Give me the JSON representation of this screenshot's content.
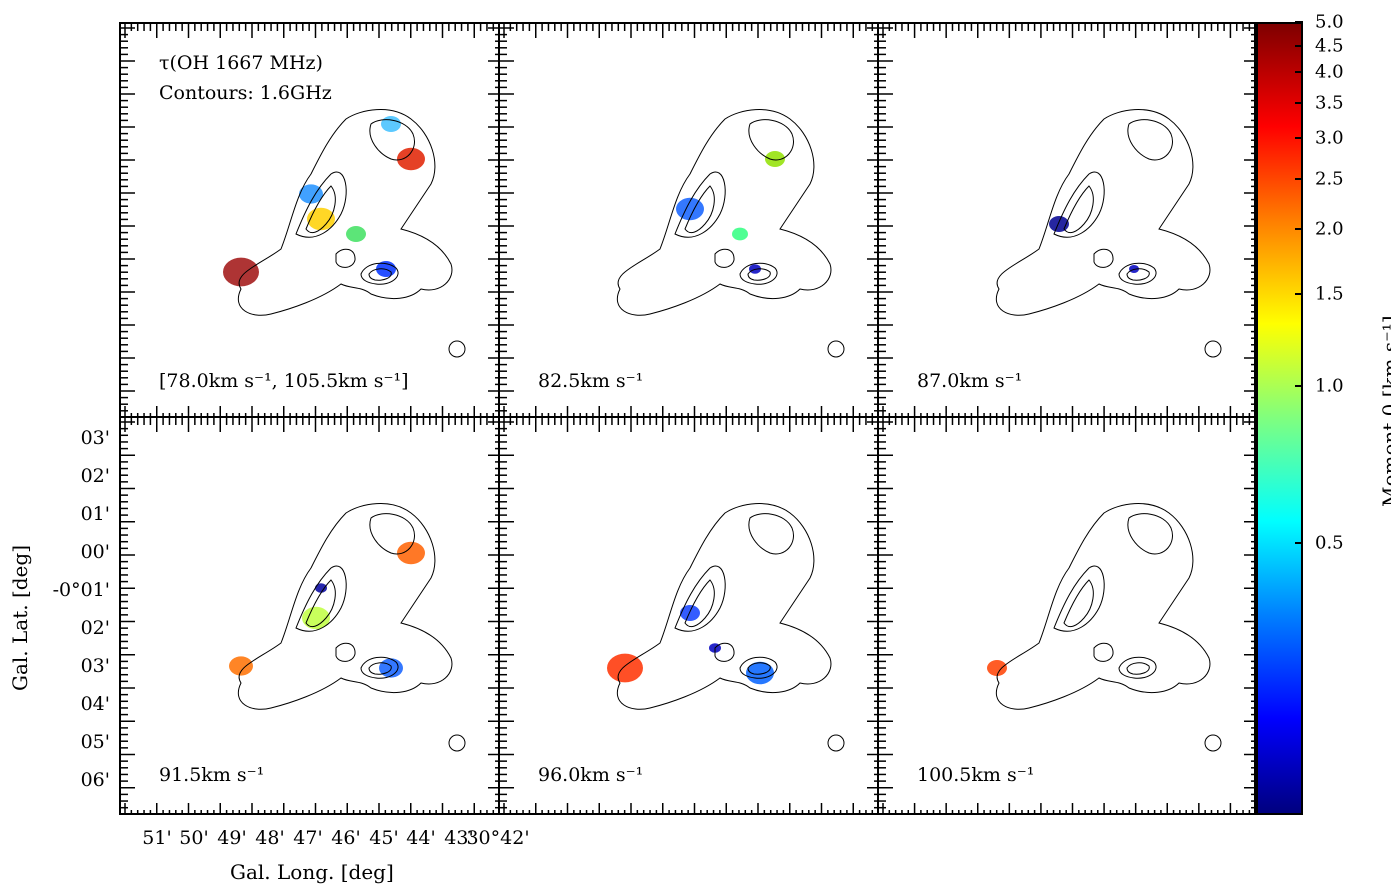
{
  "chart_data": {
    "type": "heatmap",
    "panels": [
      {
        "id": "p1",
        "labels": [
          "τ(OH 1667 MHz)",
          "Contours: 1.6GHz"
        ],
        "velocity_label": "[78.0km s⁻¹, 105.5km s⁻¹]"
      },
      {
        "id": "p2",
        "velocity_label": "82.5km s⁻¹"
      },
      {
        "id": "p3",
        "velocity_label": "87.0km s⁻¹"
      },
      {
        "id": "p4",
        "velocity_label": "91.5km s⁻¹"
      },
      {
        "id": "p5",
        "velocity_label": "96.0km s⁻¹"
      },
      {
        "id": "p6",
        "velocity_label": "100.5km s⁻¹"
      }
    ],
    "xlabel": "Gal. Long. [deg]",
    "ylabel": "Gal. Lat. [deg]",
    "x_ticks": [
      "51'",
      "50'",
      "49'",
      "48'",
      "47'",
      "46'",
      "45'",
      "44'",
      "43'",
      "30°42'"
    ],
    "y_ticks": [
      "03'",
      "02'",
      "01'",
      "00'",
      "-0°01'",
      "02'",
      "03'",
      "04'",
      "05'",
      "06'"
    ],
    "colorbar": {
      "label": "Moment 0 [km s⁻¹]",
      "scale": "log",
      "range": [
        0.15,
        5.0
      ],
      "ticks": [
        "5.0",
        "4.5",
        "4.0",
        "3.5",
        "3.0",
        "2.5",
        "2.0",
        "1.5",
        "1.0",
        "0.5"
      ],
      "tick_values": [
        5.0,
        4.5,
        4.0,
        3.5,
        3.0,
        2.5,
        2.0,
        1.5,
        1.0,
        0.5
      ],
      "colormap": "jet"
    }
  }
}
